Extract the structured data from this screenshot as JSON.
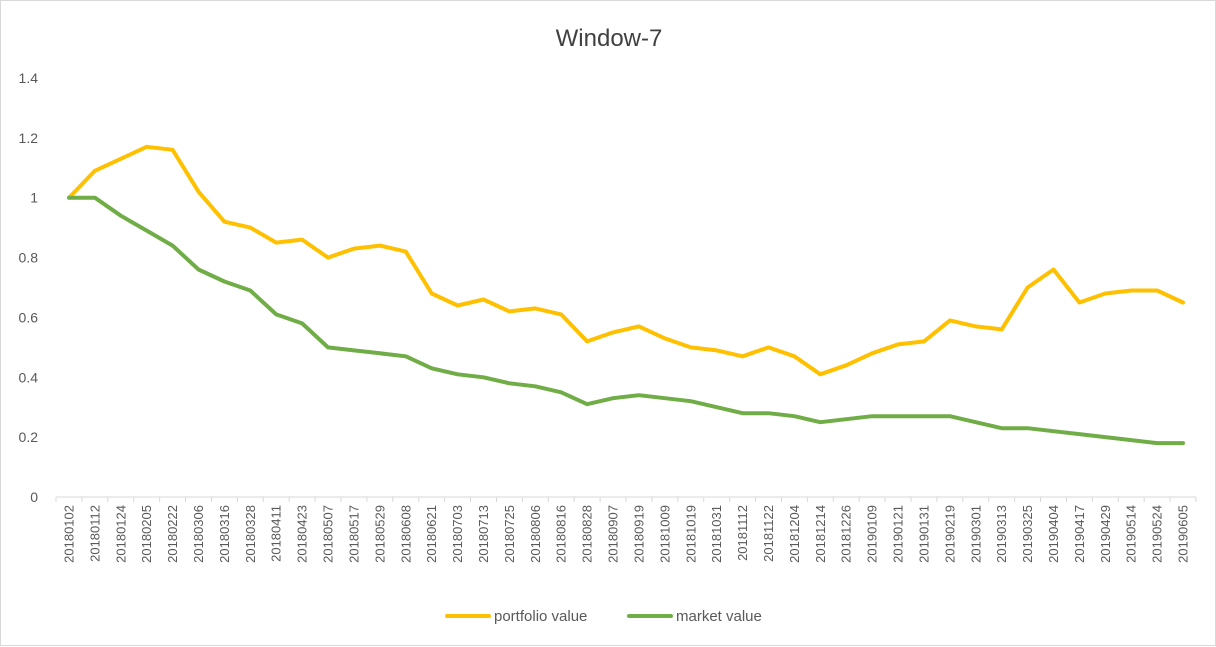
{
  "chart_data": {
    "type": "line",
    "title": "Window-7",
    "xlabel": "",
    "ylabel": "",
    "ylim": [
      0,
      1.4
    ],
    "yticks": [
      "0",
      "0.2",
      "0.4",
      "0.6",
      "0.8",
      "1",
      "1.2",
      "1.4"
    ],
    "grid": false,
    "legend_position": "bottom",
    "x": [
      "20180102",
      "20180112",
      "20180124",
      "20180205",
      "20180222",
      "20180306",
      "20180316",
      "20180328",
      "20180411",
      "20180423",
      "20180507",
      "20180517",
      "20180529",
      "20180608",
      "20180621",
      "20180703",
      "20180713",
      "20180725",
      "20180806",
      "20180816",
      "20180828",
      "20180907",
      "20180919",
      "20181009",
      "20181019",
      "20181031",
      "20181112",
      "20181122",
      "20181204",
      "20181214",
      "20181226",
      "20190109",
      "20190121",
      "20190131",
      "20190219",
      "20190301",
      "20190313",
      "20190325",
      "20190404",
      "20190417",
      "20190429",
      "20190514",
      "20190524",
      "20190605"
    ],
    "series": [
      {
        "name": "portfolio value",
        "color": "#FFC000",
        "values": [
          1.0,
          1.09,
          1.13,
          1.17,
          1.16,
          1.02,
          0.92,
          0.9,
          0.85,
          0.86,
          0.8,
          0.83,
          0.84,
          0.82,
          0.68,
          0.64,
          0.66,
          0.62,
          0.63,
          0.61,
          0.52,
          0.55,
          0.57,
          0.53,
          0.5,
          0.49,
          0.47,
          0.5,
          0.47,
          0.41,
          0.44,
          0.48,
          0.51,
          0.52,
          0.59,
          0.57,
          0.56,
          0.7,
          0.76,
          0.65,
          0.68,
          0.69,
          0.69,
          0.65
        ]
      },
      {
        "name": "market value",
        "color": "#70AD47",
        "values": [
          1.0,
          1.0,
          0.94,
          0.89,
          0.84,
          0.76,
          0.72,
          0.69,
          0.61,
          0.58,
          0.5,
          0.49,
          0.48,
          0.47,
          0.43,
          0.41,
          0.4,
          0.38,
          0.37,
          0.35,
          0.31,
          0.33,
          0.34,
          0.33,
          0.32,
          0.3,
          0.28,
          0.28,
          0.27,
          0.25,
          0.26,
          0.27,
          0.27,
          0.27,
          0.27,
          0.25,
          0.23,
          0.23,
          0.22,
          0.21,
          0.2,
          0.19,
          0.18,
          0.18
        ]
      }
    ]
  }
}
